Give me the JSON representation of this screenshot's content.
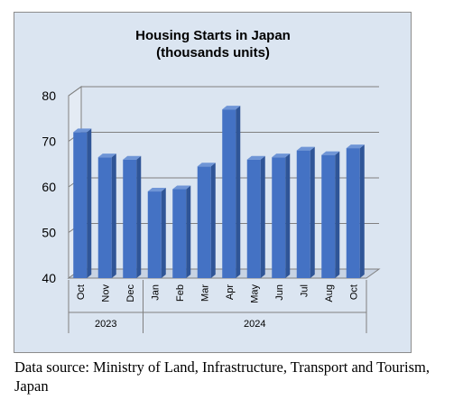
{
  "chart_data": {
    "type": "bar",
    "title": "Housing Starts in Japan",
    "subtitle": "(thousands units)",
    "categories": [
      "Oct",
      "Nov",
      "Dec",
      "Jan",
      "Feb",
      "Mar",
      "Apr",
      "May",
      "Jun",
      "Jul",
      "Aug",
      "Oct"
    ],
    "category_groups": [
      {
        "label": "2023",
        "count": 3
      },
      {
        "label": "2024",
        "count": 9
      }
    ],
    "values": [
      72,
      66.5,
      66,
      59,
      59.5,
      64.5,
      77,
      66,
      66.5,
      68,
      67,
      68.5
    ],
    "ylim": [
      40,
      80
    ],
    "yticks": [
      "40",
      "50",
      "60",
      "70",
      "80"
    ],
    "xlabel": "",
    "ylabel": "",
    "grid": true,
    "bar_color": "#4472c4",
    "background_color": "#dbe5f1"
  },
  "source_note": "Data source: Ministry of Land, Infrastructure, Transport and Tourism, Japan"
}
